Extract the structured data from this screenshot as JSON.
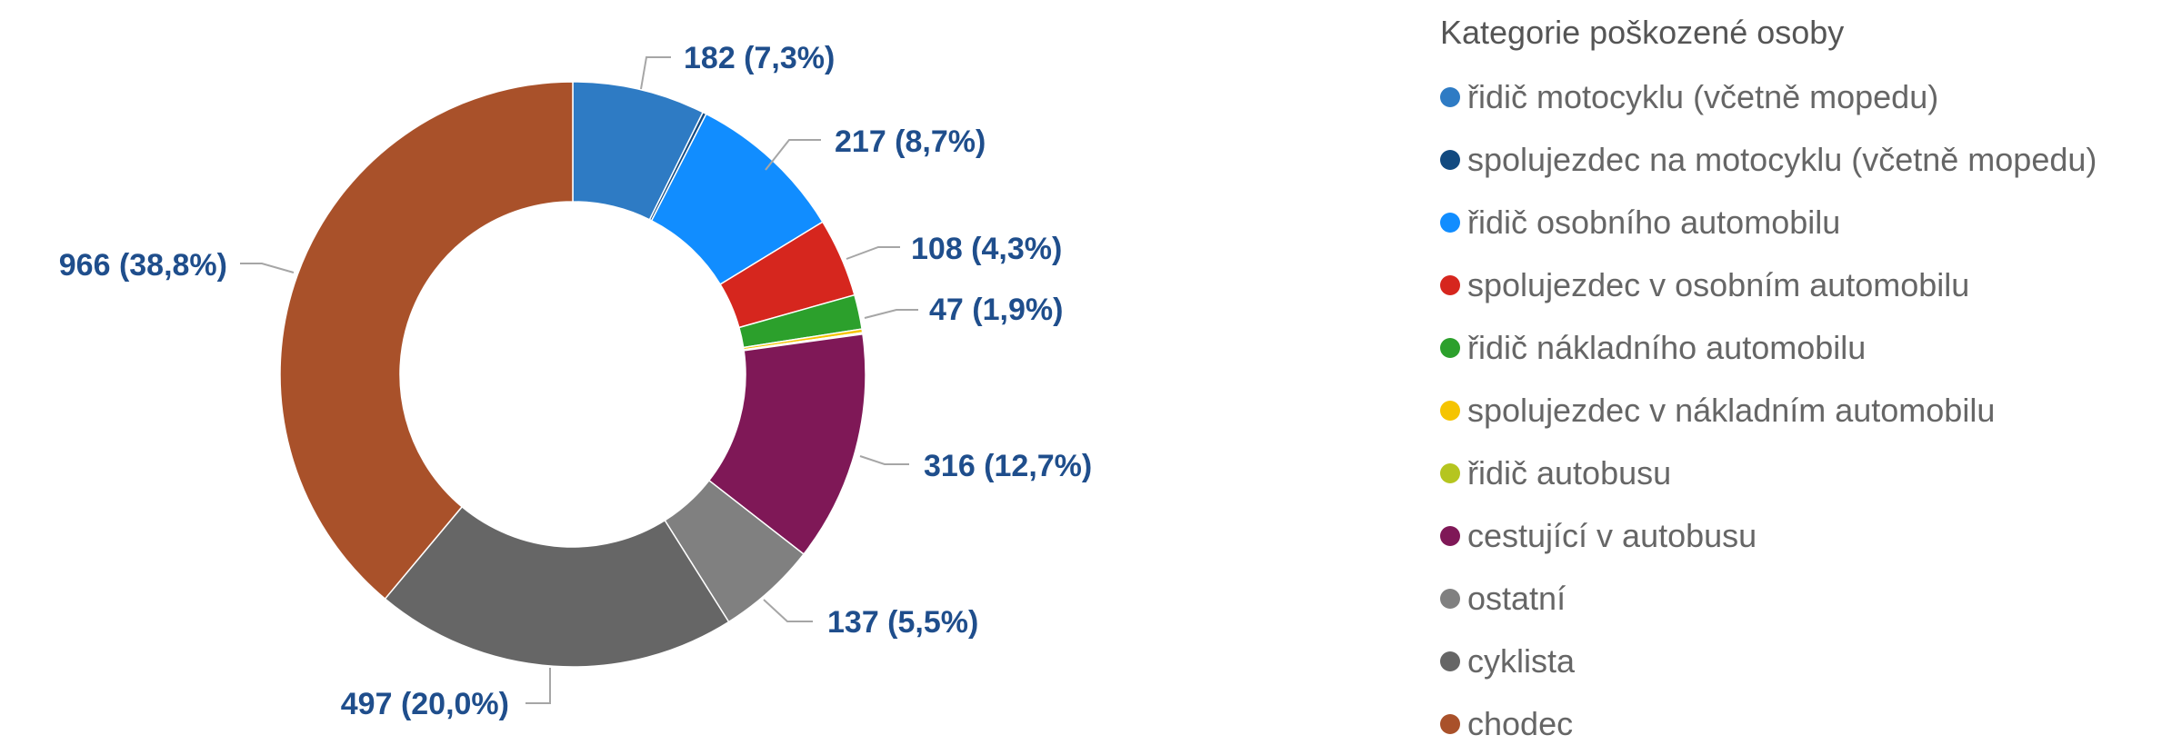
{
  "chart_data": {
    "type": "pie",
    "donut": true,
    "legend_title": "Kategorie poškozené osoby",
    "legend_position": "right",
    "slices": [
      {
        "name": "řidič motocyklu (včetně mopedu)",
        "value": 182,
        "label": "182 (7,3%)",
        "color": "#2e7bc4"
      },
      {
        "name": "spolujezdec na motocyklu (včetně mopedu)",
        "value": 5,
        "label": "",
        "color": "#124a80"
      },
      {
        "name": "řidič osobního automobilu",
        "value": 217,
        "label": "217 (8,7%)",
        "color": "#118dff"
      },
      {
        "name": "spolujezdec v osobním automobilu",
        "value": 108,
        "label": "108 (4,3%)",
        "color": "#d6261e"
      },
      {
        "name": "řidič nákladního automobilu",
        "value": 47,
        "label": "47 (1,9%)",
        "color": "#2ca02c"
      },
      {
        "name": "spolujezdec v nákladním automobilu",
        "value": 5,
        "label": "",
        "color": "#f5c400"
      },
      {
        "name": "řidič autobusu",
        "value": 2,
        "label": "",
        "color": "#b5c51f"
      },
      {
        "name": "cestující v autobusu",
        "value": 316,
        "label": "316 (12,7%)",
        "color": "#7f1857"
      },
      {
        "name": "ostatní",
        "value": 137,
        "label": "137 (5,5%)",
        "color": "#808080"
      },
      {
        "name": "cyklista",
        "value": 497,
        "label": "497 (20,0%)",
        "color": "#666666"
      },
      {
        "name": "chodec",
        "value": 966,
        "label": "966 (38,8%)",
        "color": "#a9512a"
      }
    ]
  }
}
